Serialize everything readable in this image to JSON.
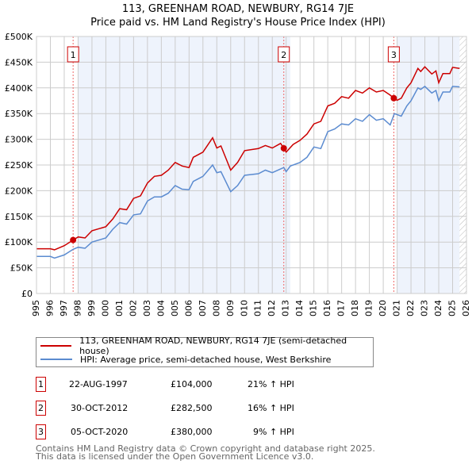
{
  "chart_data": {
    "type": "line",
    "title": "113, GREENHAM ROAD, NEWBURY, RG14 7JE",
    "subtitle": "Price paid vs. HM Land Registry's House Price Index (HPI)",
    "xlim": [
      1995,
      2026
    ],
    "ylim": [
      0,
      500000
    ],
    "x_ticks": [
      "1995",
      "1996",
      "1997",
      "1998",
      "1999",
      "2000",
      "2001",
      "2002",
      "2003",
      "2004",
      "2005",
      "2006",
      "2007",
      "2008",
      "2009",
      "2010",
      "2011",
      "2012",
      "2013",
      "2014",
      "2015",
      "2016",
      "2017",
      "2018",
      "2019",
      "2020",
      "2021",
      "2022",
      "2023",
      "2024",
      "2025",
      "2026"
    ],
    "y_ticks": [
      {
        "v": 0,
        "label": "£0"
      },
      {
        "v": 50000,
        "label": "£50K"
      },
      {
        "v": 100000,
        "label": "£100K"
      },
      {
        "v": 150000,
        "label": "£150K"
      },
      {
        "v": 200000,
        "label": "£200K"
      },
      {
        "v": 250000,
        "label": "£250K"
      },
      {
        "v": 300000,
        "label": "£300K"
      },
      {
        "v": 350000,
        "label": "£350K"
      },
      {
        "v": 400000,
        "label": "£400K"
      },
      {
        "v": 450000,
        "label": "£450K"
      },
      {
        "v": 500000,
        "label": "£500K"
      }
    ],
    "grid": true,
    "shaded_ranges": [
      [
        1998,
        2013.3
      ],
      [
        2021,
        2025.5
      ]
    ],
    "hatched_from": 2025.5,
    "series": [
      {
        "name": "113, GREENHAM ROAD, NEWBURY, RG14 7JE (semi-detached house)",
        "color": "#cc0000",
        "x": [
          1995,
          1996,
          1996.3,
          1997,
          1997.64,
          1998,
          1998.5,
          1999,
          2000,
          2000.5,
          2001,
          2001.5,
          2002,
          2002.5,
          2003,
          2003.5,
          2004,
          2004.5,
          2005,
          2005.5,
          2006,
          2006.3,
          2007,
          2007.7,
          2008,
          2008.3,
          2009,
          2009.5,
          2010,
          2011,
          2011.5,
          2012,
          2012.6,
          2012.83,
          2013,
          2013.5,
          2014,
          2014.5,
          2015,
          2015.5,
          2016,
          2016.5,
          2017,
          2017.5,
          2018,
          2018.5,
          2019,
          2019.5,
          2020,
          2020.5,
          2020.76,
          2021,
          2021.3,
          2021.7,
          2022,
          2022.5,
          2022.7,
          2023,
          2023.5,
          2023.8,
          2024,
          2024.3,
          2024.8,
          2025,
          2025.5
        ],
        "y": [
          87000,
          87000,
          85000,
          93000,
          104000,
          110000,
          108000,
          122000,
          130000,
          145000,
          165000,
          163000,
          185000,
          190000,
          215000,
          228000,
          230000,
          240000,
          255000,
          248000,
          245000,
          265000,
          275000,
          303000,
          283000,
          287000,
          240000,
          255000,
          278000,
          282000,
          288000,
          283000,
          292000,
          282500,
          275000,
          290000,
          298000,
          310000,
          330000,
          335000,
          365000,
          370000,
          383000,
          380000,
          395000,
          390000,
          400000,
          392000,
          395000,
          386000,
          380000,
          376000,
          380000,
          400000,
          410000,
          438000,
          432000,
          441000,
          427000,
          433000,
          410000,
          428000,
          428000,
          440000,
          438000
        ]
      },
      {
        "name": "HPI: Average price, semi-detached house, West Berkshire",
        "color": "#5b8bd0",
        "x": [
          1995,
          1996,
          1996.3,
          1997,
          1997.64,
          1998,
          1998.5,
          1999,
          2000,
          2000.5,
          2001,
          2001.5,
          2002,
          2002.5,
          2003,
          2003.5,
          2004,
          2004.5,
          2005,
          2005.5,
          2006,
          2006.3,
          2007,
          2007.7,
          2008,
          2008.3,
          2009,
          2009.5,
          2010,
          2011,
          2011.5,
          2012,
          2012.83,
          2013,
          2013.3,
          2014,
          2014.5,
          2015,
          2015.5,
          2016,
          2016.5,
          2017,
          2017.5,
          2018,
          2018.5,
          2019,
          2019.5,
          2020,
          2020.5,
          2020.8,
          2021.3,
          2021.7,
          2022,
          2022.5,
          2022.7,
          2023,
          2023.5,
          2023.8,
          2024,
          2024.3,
          2024.8,
          2025,
          2025.5
        ],
        "y": [
          72000,
          72000,
          69000,
          75000,
          86000,
          90000,
          88000,
          100000,
          108000,
          125000,
          138000,
          135000,
          153000,
          155000,
          180000,
          188000,
          188000,
          195000,
          210000,
          203000,
          202000,
          218000,
          228000,
          250000,
          235000,
          237000,
          198000,
          210000,
          230000,
          233000,
          240000,
          235000,
          245000,
          237000,
          248000,
          255000,
          265000,
          285000,
          282000,
          315000,
          320000,
          330000,
          328000,
          340000,
          335000,
          348000,
          337000,
          340000,
          328000,
          350000,
          345000,
          365000,
          375000,
          400000,
          397000,
          403000,
          390000,
          395000,
          375000,
          392000,
          392000,
          403000,
          402000
        ]
      }
    ],
    "sales": [
      {
        "n": "1",
        "year": 1997.64,
        "price": 104000,
        "date": "22-AUG-1997",
        "price_label": "£104,000",
        "hpi": "21% ↑ HPI"
      },
      {
        "n": "2",
        "year": 2012.83,
        "price": 282500,
        "date": "30-OCT-2012",
        "price_label": "£282,500",
        "hpi": "16% ↑ HPI"
      },
      {
        "n": "3",
        "year": 2020.76,
        "price": 380000,
        "date": "05-OCT-2020",
        "price_label": "£380,000",
        "hpi": "9% ↑ HPI"
      }
    ]
  },
  "legend": {
    "property": "113, GREENHAM ROAD, NEWBURY, RG14 7JE (semi-detached house)",
    "hpi": "HPI: Average price, semi-detached house, West Berkshire"
  },
  "footer": {
    "line1": "Contains HM Land Registry data © Crown copyright and database right 2025.",
    "line2": "This data is licensed under the Open Government Licence v3.0."
  }
}
